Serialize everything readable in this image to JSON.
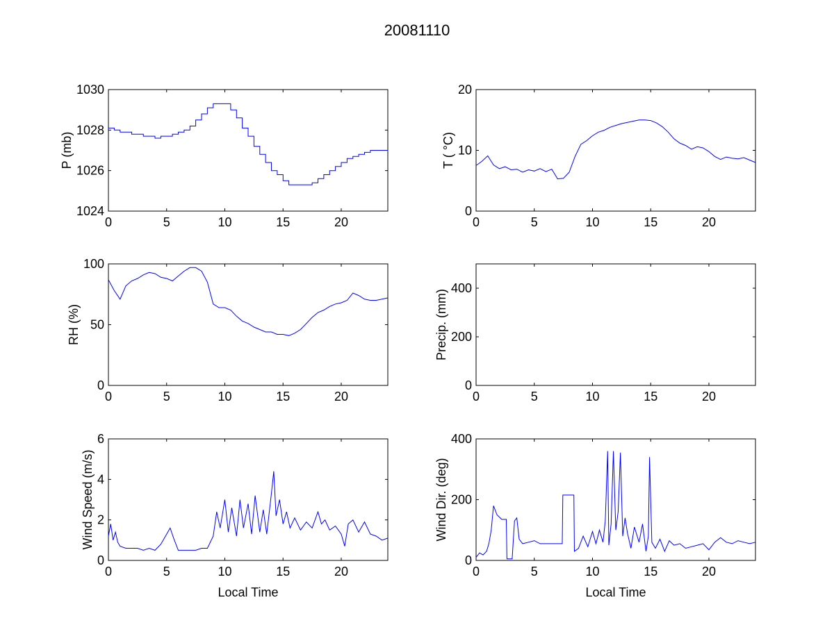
{
  "figure": {
    "title": "20081110",
    "line_color": "#0000ff"
  },
  "chart_data": [
    {
      "type": "line",
      "id": "pressure",
      "ylabel": "P (mb)",
      "xlabel": "",
      "xlim": [
        0,
        24
      ],
      "ylim": [
        1024,
        1030
      ],
      "xticks": [
        0,
        5,
        10,
        15,
        20
      ],
      "yticks": [
        1024,
        1026,
        1028,
        1030
      ],
      "series": [
        {
          "name": "P",
          "step": true,
          "x": [
            0,
            0.5,
            1,
            1.5,
            2,
            2.5,
            3,
            3.5,
            4,
            4.5,
            5,
            5.5,
            6,
            6.5,
            7,
            7.5,
            8,
            8.5,
            9,
            9.5,
            10,
            10.5,
            11,
            11.5,
            12,
            12.5,
            13,
            13.5,
            14,
            14.5,
            15,
            15.5,
            16,
            16.5,
            17,
            17.5,
            18,
            18.5,
            19,
            19.5,
            20,
            20.5,
            21,
            21.5,
            22,
            22.5,
            23,
            23.5,
            24
          ],
          "y": [
            1028.1,
            1028.0,
            1027.9,
            1027.9,
            1027.8,
            1027.8,
            1027.7,
            1027.7,
            1027.6,
            1027.7,
            1027.7,
            1027.8,
            1027.9,
            1028.0,
            1028.2,
            1028.5,
            1028.8,
            1029.1,
            1029.3,
            1029.3,
            1029.3,
            1029.0,
            1028.6,
            1028.1,
            1027.7,
            1027.2,
            1026.8,
            1026.4,
            1026.0,
            1025.8,
            1025.5,
            1025.3,
            1025.3,
            1025.3,
            1025.3,
            1025.4,
            1025.6,
            1025.8,
            1026.0,
            1026.2,
            1026.4,
            1026.6,
            1026.7,
            1026.8,
            1026.9,
            1027.0,
            1027.0,
            1027.0,
            1027.0
          ]
        }
      ]
    },
    {
      "type": "line",
      "id": "temperature",
      "ylabel": "T ( °C)",
      "xlabel": "",
      "xlim": [
        0,
        24
      ],
      "ylim": [
        0,
        20
      ],
      "xticks": [
        0,
        5,
        10,
        15,
        20
      ],
      "yticks": [
        0,
        10,
        20
      ],
      "series": [
        {
          "name": "T",
          "x": [
            0,
            0.5,
            1,
            1.5,
            2,
            2.5,
            3,
            3.5,
            4,
            4.5,
            5,
            5.5,
            6,
            6.5,
            7,
            7.5,
            8,
            8.5,
            9,
            9.5,
            10,
            10.5,
            11,
            11.5,
            12,
            12.5,
            13,
            13.5,
            14,
            14.5,
            15,
            15.5,
            16,
            16.5,
            17,
            17.5,
            18,
            18.5,
            19,
            19.5,
            20,
            20.5,
            21,
            21.5,
            22,
            22.5,
            23,
            23.5,
            24
          ],
          "y": [
            7.5,
            8.2,
            9.1,
            7.6,
            7.0,
            7.3,
            6.8,
            6.9,
            6.4,
            6.8,
            6.6,
            7.0,
            6.5,
            6.9,
            5.3,
            5.4,
            6.4,
            9.0,
            11.0,
            11.6,
            12.4,
            13.0,
            13.3,
            13.8,
            14.1,
            14.4,
            14.6,
            14.8,
            15.0,
            15.0,
            14.9,
            14.5,
            13.9,
            13.0,
            11.9,
            11.2,
            10.8,
            10.2,
            10.6,
            10.4,
            9.8,
            9.0,
            8.5,
            8.9,
            8.7,
            8.6,
            8.8,
            8.4,
            8.0
          ]
        }
      ]
    },
    {
      "type": "line",
      "id": "relative-humidity",
      "ylabel": "RH (%)",
      "xlabel": "",
      "xlim": [
        0,
        24
      ],
      "ylim": [
        0,
        100
      ],
      "xticks": [
        0,
        5,
        10,
        15,
        20
      ],
      "yticks": [
        0,
        50,
        100
      ],
      "series": [
        {
          "name": "RH",
          "x": [
            0,
            0.5,
            1,
            1.5,
            2,
            2.5,
            3,
            3.5,
            4,
            4.5,
            5,
            5.5,
            6,
            6.5,
            7,
            7.5,
            8,
            8.5,
            9,
            9.5,
            10,
            10.5,
            11,
            11.5,
            12,
            12.5,
            13,
            13.5,
            14,
            14.5,
            15,
            15.5,
            16,
            16.5,
            17,
            17.5,
            18,
            18.5,
            19,
            19.5,
            20,
            20.5,
            21,
            21.5,
            22,
            22.5,
            23,
            23.5,
            24
          ],
          "y": [
            87,
            78,
            71,
            82,
            86,
            88,
            91,
            93,
            92,
            89,
            88,
            86,
            90,
            94,
            97,
            97,
            94,
            85,
            67,
            64,
            64,
            62,
            57,
            53,
            51,
            48,
            46,
            44,
            44,
            42,
            42,
            41,
            43,
            46,
            51,
            56,
            60,
            62,
            65,
            67,
            68,
            70,
            76,
            74,
            71,
            70,
            70,
            71,
            72
          ]
        }
      ]
    },
    {
      "type": "line",
      "id": "precipitation",
      "ylabel": "Precip. (mm)",
      "xlabel": "",
      "xlim": [
        0,
        24
      ],
      "ylim": [
        0,
        500
      ],
      "xticks": [
        0,
        5,
        10,
        15,
        20
      ],
      "yticks": [
        0,
        200,
        400
      ],
      "series": []
    },
    {
      "type": "line",
      "id": "wind-speed",
      "ylabel": "Wind Speed (m/s)",
      "xlabel": "Local Time",
      "xlim": [
        0,
        24
      ],
      "ylim": [
        0,
        6
      ],
      "xticks": [
        0,
        5,
        10,
        15,
        20
      ],
      "yticks": [
        0,
        2,
        4,
        6
      ],
      "series": [
        {
          "name": "Wind Speed",
          "x": [
            0,
            0.2,
            0.4,
            0.6,
            0.8,
            1,
            1.5,
            2,
            2.5,
            3,
            3.5,
            4,
            4.5,
            5,
            5.3,
            5.6,
            6,
            6.5,
            7,
            7.5,
            8,
            8.5,
            9,
            9.3,
            9.6,
            10,
            10.3,
            10.6,
            11,
            11.3,
            11.6,
            12,
            12.3,
            12.6,
            13,
            13.3,
            13.6,
            14,
            14.2,
            14.4,
            14.7,
            15,
            15.3,
            15.6,
            16,
            16.5,
            17,
            17.5,
            18,
            18.3,
            18.6,
            19,
            19.5,
            20,
            20.3,
            20.6,
            21,
            21.5,
            22,
            22.5,
            23,
            23.5,
            24
          ],
          "y": [
            1.2,
            1.8,
            1.0,
            1.4,
            0.9,
            0.7,
            0.6,
            0.6,
            0.6,
            0.5,
            0.6,
            0.5,
            0.8,
            1.3,
            1.6,
            1.1,
            0.5,
            0.5,
            0.5,
            0.5,
            0.6,
            0.6,
            1.2,
            2.4,
            1.6,
            3.0,
            1.4,
            2.6,
            1.2,
            3.0,
            1.6,
            2.8,
            1.3,
            3.2,
            1.4,
            2.5,
            1.3,
            3.3,
            4.4,
            2.2,
            3.0,
            1.8,
            2.4,
            1.6,
            2.1,
            1.5,
            1.9,
            1.6,
            2.4,
            1.8,
            2.0,
            1.5,
            1.7,
            1.3,
            0.7,
            1.8,
            2.0,
            1.4,
            1.9,
            1.3,
            1.2,
            1.0,
            1.1
          ]
        }
      ]
    },
    {
      "type": "line",
      "id": "wind-direction",
      "ylabel": "Wind Dir. (deg)",
      "xlabel": "Local Time",
      "xlim": [
        0,
        24
      ],
      "ylim": [
        0,
        400
      ],
      "xticks": [
        0,
        5,
        10,
        15,
        20
      ],
      "yticks": [
        0,
        200,
        400
      ],
      "series": [
        {
          "name": "Wind Direction",
          "x": [
            0,
            0.3,
            0.6,
            0.9,
            1.1,
            1.3,
            1.5,
            1.8,
            2.2,
            2.6,
            2.65,
            3.0,
            3.1,
            3.3,
            3.5,
            3.7,
            4.0,
            4.5,
            5.0,
            5.5,
            6,
            6.5,
            7,
            7.4,
            7.45,
            8.0,
            8.4,
            8.45,
            8.8,
            9.2,
            9.6,
            10.0,
            10.3,
            10.6,
            10.9,
            11.1,
            11.3,
            11.4,
            11.6,
            11.8,
            12.0,
            12.2,
            12.4,
            12.6,
            12.8,
            13.0,
            13.3,
            13.6,
            14.0,
            14.3,
            14.6,
            14.8,
            14.9,
            15.1,
            15.4,
            15.8,
            16.2,
            16.6,
            17,
            17.5,
            18,
            18.5,
            19,
            19.5,
            20,
            20.5,
            21,
            21.5,
            22,
            22.5,
            23,
            23.5,
            24
          ],
          "y": [
            10,
            25,
            18,
            30,
            55,
            100,
            180,
            150,
            135,
            135,
            5,
            5,
            5,
            130,
            140,
            70,
            55,
            60,
            65,
            55,
            55,
            55,
            55,
            55,
            215,
            215,
            215,
            30,
            40,
            80,
            45,
            95,
            55,
            100,
            60,
            130,
            360,
            50,
            120,
            360,
            100,
            160,
            355,
            80,
            140,
            90,
            40,
            110,
            60,
            120,
            30,
            80,
            340,
            60,
            40,
            70,
            30,
            65,
            50,
            55,
            40,
            45,
            50,
            55,
            35,
            60,
            75,
            60,
            55,
            65,
            60,
            55,
            60
          ]
        }
      ]
    }
  ]
}
